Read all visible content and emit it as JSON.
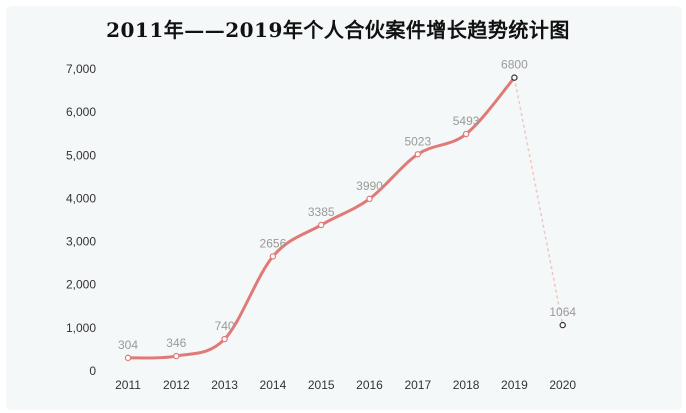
{
  "chart_data": {
    "type": "line",
    "title": "2011年——2019年个人合伙案件增长趋势统计图",
    "categories": [
      "2011",
      "2012",
      "2013",
      "2014",
      "2015",
      "2016",
      "2017",
      "2018",
      "2019",
      "2020"
    ],
    "series": [
      {
        "values": [
          304,
          346,
          740,
          2656,
          3385,
          3990,
          5023,
          5493,
          6800,
          1064
        ],
        "labels": [
          "304",
          "346",
          "740",
          "2656",
          "3385",
          "3990",
          "5023",
          "5493",
          "6800",
          "1064"
        ],
        "solid_through_index": 8,
        "color": "#e07a78",
        "dashed_color": "#f3c6c5"
      }
    ],
    "ylim": [
      0,
      7000
    ],
    "yticks": [
      0,
      1000,
      2000,
      3000,
      4000,
      5000,
      6000,
      7000
    ],
    "ytick_labels": [
      "0",
      "1,000",
      "2,000",
      "3,000",
      "4,000",
      "5,000",
      "6,000",
      "7,000"
    ],
    "xlabel": "",
    "ylabel": "",
    "grid": false,
    "legend": "none"
  }
}
